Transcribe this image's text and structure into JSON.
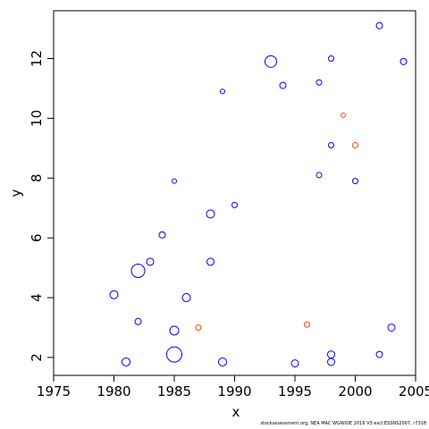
{
  "chart_data": {
    "type": "scatter",
    "title": "",
    "xlabel": "x",
    "ylabel": "y",
    "xlim": [
      1975,
      2005
    ],
    "ylim": [
      1.4,
      13.6
    ],
    "xticks": [
      1975,
      1980,
      1985,
      1990,
      1995,
      2000,
      2005
    ],
    "yticks": [
      2,
      4,
      6,
      8,
      10,
      12
    ],
    "grid": false,
    "legend": "none",
    "marker": "open-circle",
    "colors": {
      "residual_negative": "#0000ff",
      "residual_positive": "#ff4500"
    },
    "note": "Open circles at each (year, age); area scaled to residual magnitude. Representative sample of the bubbles shown.",
    "points": [
      {
        "x": 1980,
        "y": 4.1,
        "size": 0.45,
        "series": "residual_negative"
      },
      {
        "x": 1982,
        "y": 4.9,
        "size": 0.75,
        "series": "residual_negative"
      },
      {
        "x": 1983,
        "y": 5.2,
        "size": 0.4,
        "series": "residual_negative"
      },
      {
        "x": 1984,
        "y": 6.1,
        "size": 0.35,
        "series": "residual_negative"
      },
      {
        "x": 1985,
        "y": 2.1,
        "size": 0.85,
        "series": "residual_negative"
      },
      {
        "x": 1985,
        "y": 2.9,
        "size": 0.5,
        "series": "residual_negative"
      },
      {
        "x": 1981,
        "y": 1.85,
        "size": 0.45,
        "series": "residual_negative"
      },
      {
        "x": 1982,
        "y": 3.2,
        "size": 0.35,
        "series": "residual_negative"
      },
      {
        "x": 1986,
        "y": 4.0,
        "size": 0.45,
        "series": "residual_negative"
      },
      {
        "x": 1988,
        "y": 6.8,
        "size": 0.45,
        "series": "residual_negative"
      },
      {
        "x": 1988,
        "y": 5.2,
        "size": 0.4,
        "series": "residual_negative"
      },
      {
        "x": 1989,
        "y": 1.85,
        "size": 0.45,
        "series": "residual_negative"
      },
      {
        "x": 1993,
        "y": 11.9,
        "size": 0.65,
        "series": "residual_negative"
      },
      {
        "x": 1994,
        "y": 11.1,
        "size": 0.35,
        "series": "residual_negative"
      },
      {
        "x": 1997,
        "y": 11.2,
        "size": 0.3,
        "series": "residual_negative"
      },
      {
        "x": 1998,
        "y": 12.0,
        "size": 0.3,
        "series": "residual_negative"
      },
      {
        "x": 2002,
        "y": 13.1,
        "size": 0.35,
        "series": "residual_negative"
      },
      {
        "x": 2004,
        "y": 11.9,
        "size": 0.35,
        "series": "residual_negative"
      },
      {
        "x": 1995,
        "y": 1.8,
        "size": 0.4,
        "series": "residual_negative"
      },
      {
        "x": 1998,
        "y": 2.1,
        "size": 0.4,
        "series": "residual_negative"
      },
      {
        "x": 1998,
        "y": 1.85,
        "size": 0.4,
        "series": "residual_negative"
      },
      {
        "x": 2003,
        "y": 3.0,
        "size": 0.4,
        "series": "residual_negative"
      },
      {
        "x": 2002,
        "y": 2.1,
        "size": 0.35,
        "series": "residual_negative"
      },
      {
        "x": 2000,
        "y": 7.9,
        "size": 0.3,
        "series": "residual_negative"
      },
      {
        "x": 1998,
        "y": 9.1,
        "size": 0.3,
        "series": "residual_negative"
      },
      {
        "x": 1997,
        "y": 8.1,
        "size": 0.3,
        "series": "residual_negative"
      },
      {
        "x": 1990,
        "y": 7.1,
        "size": 0.3,
        "series": "residual_negative"
      },
      {
        "x": 1989,
        "y": 10.9,
        "size": 0.25,
        "series": "residual_negative"
      },
      {
        "x": 1985,
        "y": 7.9,
        "size": 0.25,
        "series": "residual_negative"
      },
      {
        "x": 1987,
        "y": 3.0,
        "size": 0.3,
        "series": "residual_positive"
      },
      {
        "x": 1996,
        "y": 3.1,
        "size": 0.3,
        "series": "residual_positive"
      },
      {
        "x": 2000,
        "y": 9.1,
        "size": 0.3,
        "series": "residual_positive"
      },
      {
        "x": 1999,
        "y": 10.1,
        "size": 0.25,
        "series": "residual_positive"
      }
    ]
  },
  "footnote": "stockassessment.org, NEA MAC WGWIDE 2016 V3 excl.ESSNS2007, r7318"
}
